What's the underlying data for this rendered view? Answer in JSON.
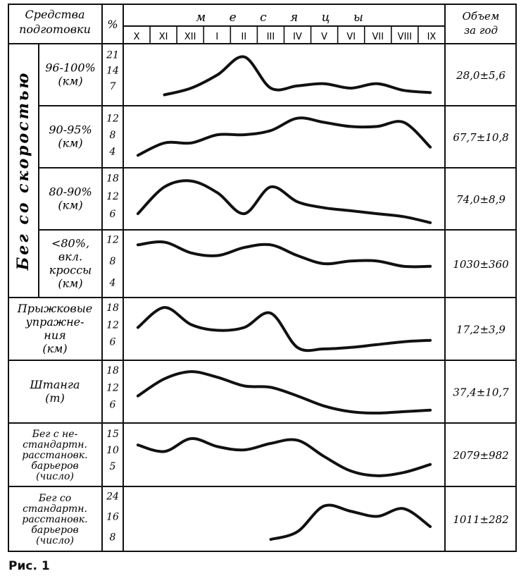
{
  "header": {
    "category": "Средства подготовки",
    "unit": "%",
    "months_title": "м е с я ц ы",
    "total": "Объем за год"
  },
  "side_label": "Бег со скоростью",
  "caption": "Рис. 1",
  "months": [
    "X",
    "XI",
    "XII",
    "I",
    "II",
    "III",
    "IV",
    "V",
    "VI",
    "VII",
    "VIII",
    "IX"
  ],
  "chart_data": {
    "type": "line",
    "x": [
      "X",
      "XI",
      "XII",
      "I",
      "II",
      "III",
      "IV",
      "V",
      "VI",
      "VII",
      "VIII",
      "IX"
    ],
    "rows": [
      {
        "label": [
          "96-100%",
          "(км)"
        ],
        "ticks": [
          "21",
          "14",
          "7"
        ],
        "tick_values": [
          21,
          14,
          7
        ],
        "ylim": [
          0,
          24
        ],
        "values": [
          null,
          3,
          6,
          12,
          20,
          6,
          7,
          8,
          6,
          8,
          5,
          4
        ],
        "annual": "28,0±5,6"
      },
      {
        "label": [
          "90-95%",
          "(км)"
        ],
        "ticks": [
          "12",
          "8",
          "4"
        ],
        "tick_values": [
          12,
          8,
          4
        ],
        "ylim": [
          1,
          14
        ],
        "values": [
          3,
          6,
          6,
          8,
          8,
          9,
          12,
          11,
          10,
          10,
          11,
          5
        ],
        "annual": "67,7±10,8"
      },
      {
        "label": [
          "80-90%",
          "(км)"
        ],
        "ticks": [
          "18",
          "12",
          "6"
        ],
        "tick_values": [
          18,
          12,
          6
        ],
        "ylim": [
          2,
          20
        ],
        "values": [
          6,
          15,
          17,
          13,
          6,
          15,
          10,
          8,
          7,
          6,
          5,
          3
        ],
        "annual": "74,0±8,9"
      },
      {
        "label": [
          "<80%,",
          "вкл.",
          "кроссы",
          "(км)"
        ],
        "ticks": [
          "12",
          "8",
          "4"
        ],
        "tick_values": [
          12,
          8,
          4
        ],
        "ylim": [
          2,
          13
        ],
        "values": [
          11,
          11.5,
          9.5,
          9,
          10.5,
          11,
          9,
          7.5,
          8,
          8,
          7,
          7
        ],
        "annual": "1030±360"
      },
      {
        "label": [
          "Прыжковые",
          "упражне-",
          "ния",
          "(км)"
        ],
        "ticks": [
          "18",
          "12",
          "6"
        ],
        "tick_values": [
          18,
          12,
          6
        ],
        "ylim": [
          1,
          20
        ],
        "values": [
          11,
          18,
          12,
          10,
          11,
          16,
          4,
          3.5,
          4,
          5,
          6,
          6.5
        ],
        "annual": "17,2±3,9"
      },
      {
        "label": [
          "Штанга",
          "(т)"
        ],
        "ticks": [
          "18",
          "12",
          "6"
        ],
        "tick_values": [
          18,
          12,
          6
        ],
        "ylim": [
          1,
          20
        ],
        "values": [
          9,
          15,
          17.5,
          15.5,
          12.5,
          12,
          9,
          5.5,
          3.5,
          3,
          3.5,
          4
        ],
        "annual": "37,4±10,7"
      },
      {
        "label": [
          "Бег с не-",
          "стандартн.",
          "расстановк.",
          "барьеров",
          "(число)"
        ],
        "ticks": [
          "15",
          "10",
          "5"
        ],
        "tick_values": [
          15,
          10,
          5
        ],
        "ylim": [
          0,
          17
        ],
        "values": [
          11.5,
          9.5,
          13.5,
          11,
          10,
          12,
          13,
          8,
          3.5,
          2,
          3,
          5.5
        ],
        "annual": "2079±982"
      },
      {
        "label": [
          "Бег со",
          "стандартн.",
          "расстановк.",
          "барьеров",
          "(число)"
        ],
        "ticks": [
          "24",
          "16",
          "8"
        ],
        "tick_values": [
          24,
          16,
          8
        ],
        "ylim": [
          4,
          26
        ],
        "values": [
          null,
          null,
          null,
          null,
          null,
          7,
          10,
          20,
          18,
          16,
          19,
          12
        ],
        "annual": "1011±282"
      }
    ]
  }
}
